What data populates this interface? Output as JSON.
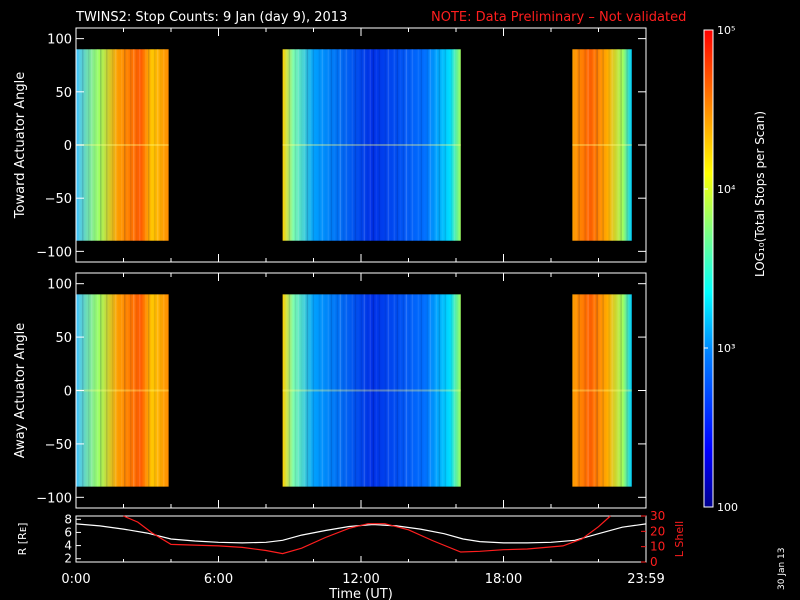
{
  "header": {
    "title": "TWINS2: Stop Counts:  9 Jan (day   9), 2013",
    "note": "NOTE: Data Preliminary – Not validated"
  },
  "footer": {
    "date_stamp": "30 Jan 13"
  },
  "colorbar": {
    "label": "LOG₁₀(Total Stops per Scan)",
    "scale": "log",
    "range": [
      100,
      100000
    ],
    "tick_labels": [
      "10⁵",
      "10⁴",
      "10³",
      "100"
    ],
    "tick_values": [
      100000,
      10000,
      1000,
      100
    ],
    "colormap": [
      "#00008f",
      "#0000ff",
      "#007fff",
      "#00ffff",
      "#7fff7f",
      "#ffff00",
      "#ff7f00",
      "#ff0000"
    ]
  },
  "chart_data": [
    {
      "type": "heatmap",
      "name": "toward",
      "ylabel": "Toward Actuator Angle",
      "ylim": [
        -110,
        110
      ],
      "y_ticks": [
        "100",
        "50",
        "0",
        "−50",
        "−100"
      ],
      "y_tick_values": [
        100,
        50,
        0,
        -50,
        -100
      ],
      "xlim_hours": [
        0,
        24
      ],
      "data_y_range": [
        -90,
        90
      ],
      "data_blocks_hours": [
        [
          0.0,
          3.9
        ],
        [
          8.7,
          16.2
        ],
        [
          20.9,
          23.4
        ]
      ],
      "background_color": "#000000"
    },
    {
      "type": "heatmap",
      "name": "away",
      "ylabel": "Away Actuator Angle",
      "ylim": [
        -110,
        110
      ],
      "y_ticks": [
        "100",
        "50",
        "0",
        "−50",
        "−100"
      ],
      "y_tick_values": [
        100,
        50,
        0,
        -50,
        -100
      ],
      "xlim_hours": [
        0,
        24
      ],
      "data_y_range": [
        -90,
        90
      ],
      "data_blocks_hours": [
        [
          0.0,
          3.9
        ],
        [
          8.7,
          16.2
        ],
        [
          20.9,
          23.4
        ]
      ],
      "background_color": "#000000"
    },
    {
      "type": "line",
      "name": "orbit",
      "xlabel": "Time (UT)",
      "x_ticks": [
        "0:00",
        "6:00",
        "12:00",
        "18:00",
        "23:59"
      ],
      "x_tick_hours": [
        0,
        6,
        12,
        18,
        24
      ],
      "left_axis": {
        "label": "R [Rᴇ]",
        "ylim": [
          1.5,
          8.5
        ],
        "ticks": [
          "8",
          "6",
          "4",
          "2"
        ],
        "tick_values": [
          8,
          6,
          4,
          2
        ],
        "color": "#ffffff"
      },
      "right_axis": {
        "label": "L Shell",
        "ylim": [
          0,
          30
        ],
        "ticks": [
          "30",
          "20",
          "10",
          "0"
        ],
        "tick_values": [
          30,
          20,
          10,
          0
        ],
        "color": "#ff1e1e"
      },
      "series": [
        {
          "axis": "left",
          "color": "#ffffff",
          "x": [
            0,
            1,
            2,
            3,
            4,
            5,
            6,
            7,
            8,
            8.7,
            9.5,
            10.5,
            11.5,
            12.5,
            13.5,
            14.5,
            15.5,
            16.3,
            17,
            18,
            19,
            20,
            21,
            22,
            23,
            24
          ],
          "y": [
            7.3,
            7.0,
            6.5,
            5.9,
            5.0,
            4.7,
            4.5,
            4.4,
            4.5,
            4.8,
            5.6,
            6.3,
            6.9,
            7.2,
            7.0,
            6.5,
            5.8,
            5.0,
            4.6,
            4.4,
            4.4,
            4.5,
            4.8,
            5.8,
            6.8,
            7.3
          ]
        },
        {
          "axis": "right",
          "color": "#ff1e1e",
          "x": [
            2.0,
            2.6,
            3.2,
            4.0,
            5.0,
            6.0,
            7.0,
            8.0,
            8.7,
            9.5,
            10.5,
            11.5,
            12.3,
            13.0,
            14.0,
            15.0,
            16.2,
            17.0,
            18.0,
            19.0,
            20.5,
            21.3,
            22.0,
            22.5
          ],
          "y": [
            30,
            26,
            19,
            11.5,
            11,
            10.5,
            9.5,
            7.5,
            5.5,
            9,
            16,
            22,
            25,
            25,
            21,
            14,
            6.5,
            7,
            8,
            8.5,
            10.5,
            15,
            23,
            30
          ]
        }
      ]
    }
  ]
}
